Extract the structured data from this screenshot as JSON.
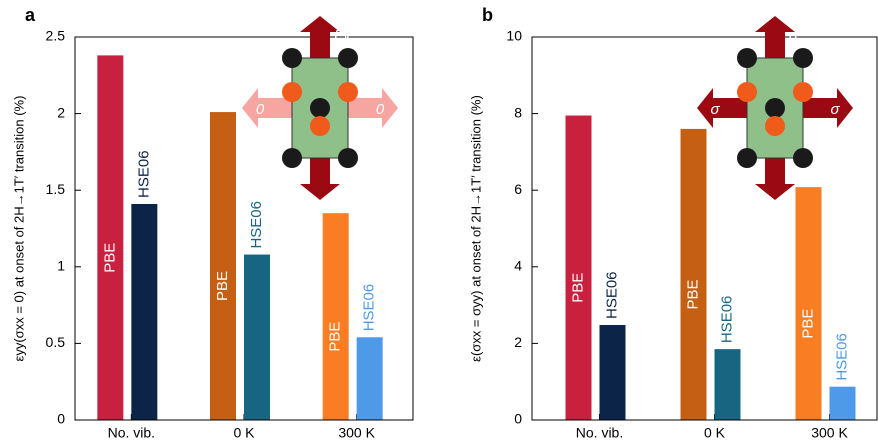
{
  "chart_data": [
    {
      "type": "bar",
      "panel": "a",
      "ylabel": "εyy(σxx = 0) at onset of 2H→1T′ transition (%)",
      "categories": [
        "No. vib.",
        "0 K",
        "300 K"
      ],
      "series": [
        {
          "name": "PBE",
          "colors": [
            "#c8203f",
            "#c45f14",
            "#f97d22"
          ],
          "values": [
            2.38,
            2.01,
            1.35
          ]
        },
        {
          "name": "HSE06",
          "colors": [
            "#0b2447",
            "#176580",
            "#4e9ae8"
          ],
          "values": [
            1.41,
            1.08,
            0.54
          ]
        }
      ],
      "ylim": [
        0,
        2.5
      ],
      "yticks": [
        0,
        0.5,
        1,
        1.5,
        2,
        2.5
      ],
      "inset_labels": {
        "vertical": "Fy",
        "horizontal": "0"
      }
    },
    {
      "type": "bar",
      "panel": "b",
      "ylabel": "ε(σxx = σyy) at onset of 2H→1T′ transition (%)",
      "categories": [
        "No. vib.",
        "0 K",
        "300 K"
      ],
      "series": [
        {
          "name": "PBE",
          "colors": [
            "#c8203f",
            "#c45f14",
            "#f97d22"
          ],
          "values": [
            7.95,
            7.6,
            6.08
          ]
        },
        {
          "name": "HSE06",
          "colors": [
            "#0b2447",
            "#176580",
            "#4e9ae8"
          ],
          "values": [
            2.48,
            1.85,
            0.87
          ]
        }
      ],
      "ylim": [
        0,
        10
      ],
      "yticks": [
        0,
        2,
        4,
        6,
        8,
        10
      ],
      "inset_labels": {
        "vertical": "σ",
        "horizontal": "σ"
      }
    }
  ]
}
